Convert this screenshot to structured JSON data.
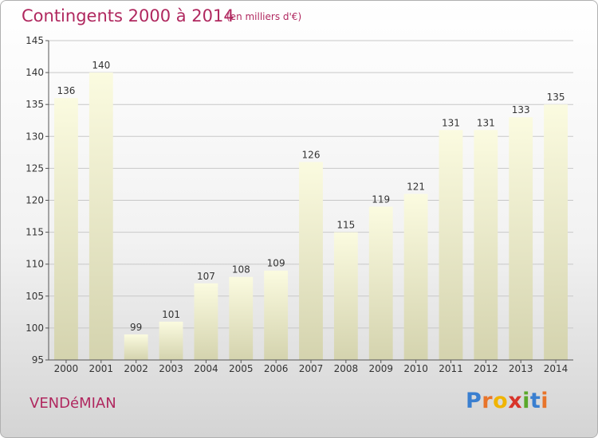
{
  "header": {
    "title": "Contingents 2000 à 2014",
    "subtitle": "(en milliers d'€)"
  },
  "footer": {
    "commune": "VENDéMIAN",
    "logo_letters": [
      {
        "ch": "P",
        "color": "#3a7fd0"
      },
      {
        "ch": "r",
        "color": "#e8742a"
      },
      {
        "ch": "o",
        "color": "#f0b400"
      },
      {
        "ch": "x",
        "color": "#d8342a"
      },
      {
        "ch": "i",
        "color": "#5aa82a"
      },
      {
        "ch": "t",
        "color": "#3a7fd0"
      },
      {
        "ch": "i",
        "color": "#e8742a"
      }
    ]
  },
  "chart_data": {
    "type": "bar",
    "categories": [
      "2000",
      "2001",
      "2002",
      "2003",
      "2004",
      "2005",
      "2006",
      "2007",
      "2008",
      "2009",
      "2010",
      "2011",
      "2012",
      "2013",
      "2014"
    ],
    "values": [
      136,
      140,
      99,
      101,
      107,
      108,
      109,
      126,
      115,
      119,
      121,
      131,
      131,
      133,
      135
    ],
    "ylim": [
      95,
      145
    ],
    "yticks": [
      95,
      100,
      105,
      110,
      115,
      120,
      125,
      130,
      135,
      140,
      145
    ],
    "grid": true,
    "bar_colors": {
      "top": "#fbfbe0",
      "bottom": "#d4d3ae"
    }
  }
}
